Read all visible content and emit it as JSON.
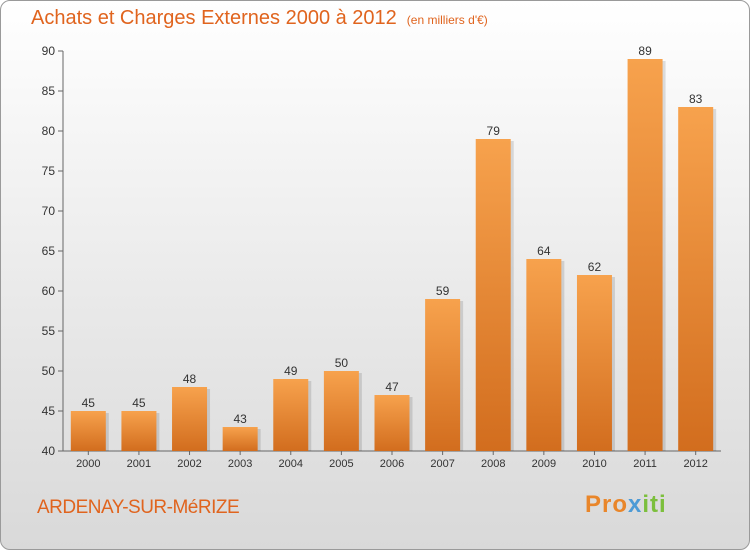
{
  "header": {
    "title": "Achats et Charges Externes 2000 à 2012",
    "unit": "(en milliers d'€)"
  },
  "footer": {
    "commune": "ARDENAY-SUR-MéRIZE",
    "logo_parts": [
      "Pro",
      "x",
      "iti"
    ]
  },
  "colors": {
    "bar_light": "#f7a24d",
    "bar_dark": "#d26d1e",
    "title": "#e0641e"
  },
  "chart_data": {
    "type": "bar",
    "title": "Achats et Charges Externes 2000 à 2012",
    "subtitle": "(en milliers d'€)",
    "categories": [
      "2000",
      "2001",
      "2002",
      "2003",
      "2004",
      "2005",
      "2006",
      "2007",
      "2008",
      "2009",
      "2010",
      "2011",
      "2012"
    ],
    "values": [
      45,
      45,
      48,
      43,
      49,
      50,
      47,
      59,
      79,
      64,
      62,
      89,
      83
    ],
    "ylim": [
      40,
      90
    ],
    "yticks": [
      40,
      45,
      50,
      55,
      60,
      65,
      70,
      75,
      80,
      85,
      90
    ],
    "grid": false,
    "xlabel": "",
    "ylabel": ""
  }
}
